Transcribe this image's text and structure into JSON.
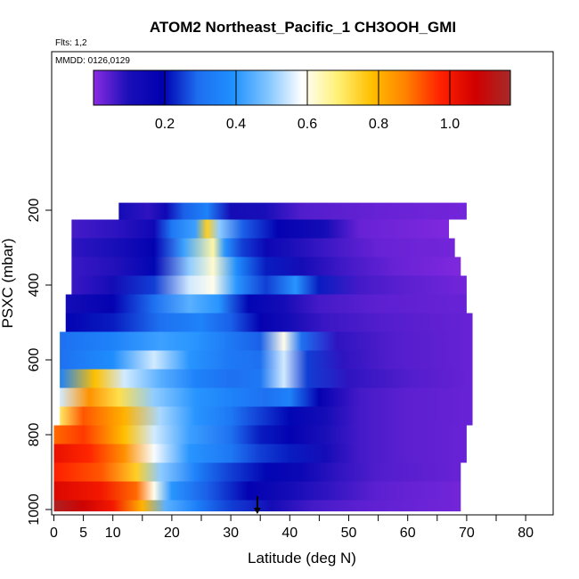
{
  "chart_data": {
    "type": "heatmap",
    "title": "ATOM2 Northeast_Pacific_1 CH3OOH_GMI",
    "flights_label": "Flts: 1,2",
    "dates_label": "MMDD: 0126,0129",
    "xlabel": "Latitude (deg N)",
    "ylabel": "PSXC (mbar)",
    "xlim": [
      0,
      85
    ],
    "ylim": [
      1010,
      0
    ],
    "x_ticks": [
      0,
      5,
      10,
      20,
      30,
      40,
      50,
      60,
      70,
      80
    ],
    "x_minor_ticks": [
      15,
      25,
      35,
      45,
      55,
      65,
      75,
      85
    ],
    "y_ticks": [
      200,
      400,
      600,
      800,
      1000
    ],
    "y_ticks_labeled": true,
    "grid": false,
    "colorbar": {
      "range": [
        0.0,
        1.17
      ],
      "ticks": [
        0.2,
        0.4,
        0.6,
        0.8,
        1.0
      ],
      "tick_labels": [
        "0.2",
        "0.4",
        "0.6",
        "0.8",
        "1.0"
      ],
      "colors": [
        "#8a2be2",
        "#1a0fb8",
        "#0000b0",
        "#1e6ef0",
        "#1e90ff",
        "#7fc4ff",
        "#ffffff",
        "#fff27a",
        "#ffc000",
        "#ff8000",
        "#ff2000",
        "#d00000",
        "#a52a2a"
      ]
    },
    "marker_latitude": 34.5,
    "rows": [
      {
        "p": 200,
        "x0": 11,
        "x1": 70,
        "stops": [
          [
            11,
            0.12
          ],
          [
            16,
            0.08
          ],
          [
            19,
            0.14
          ],
          [
            22,
            0.28
          ],
          [
            26,
            0.35
          ],
          [
            30,
            0.12
          ],
          [
            36,
            0.1
          ],
          [
            42,
            0.05
          ],
          [
            56,
            0.03
          ],
          [
            70,
            0.02
          ]
        ]
      },
      {
        "p": 250,
        "x0": 3,
        "x1": 67,
        "stops": [
          [
            3,
            0.06
          ],
          [
            10,
            0.08
          ],
          [
            17,
            0.14
          ],
          [
            20,
            0.32
          ],
          [
            24,
            0.42
          ],
          [
            26,
            0.75
          ],
          [
            28,
            0.5
          ],
          [
            32,
            0.28
          ],
          [
            38,
            0.18
          ],
          [
            46,
            0.12
          ],
          [
            52,
            0.03
          ],
          [
            67,
            0.01
          ]
        ]
      },
      {
        "p": 300,
        "x0": 3,
        "x1": 68,
        "stops": [
          [
            3,
            0.08
          ],
          [
            10,
            0.1
          ],
          [
            17,
            0.18
          ],
          [
            22,
            0.42
          ],
          [
            27,
            0.65
          ],
          [
            29,
            0.4
          ],
          [
            32,
            0.25
          ],
          [
            36,
            0.15
          ],
          [
            40,
            0.1
          ],
          [
            48,
            0.06
          ],
          [
            55,
            0.03
          ],
          [
            68,
            0.02
          ]
        ]
      },
      {
        "p": 350,
        "x0": 3,
        "x1": 69,
        "stops": [
          [
            3,
            0.07
          ],
          [
            10,
            0.09
          ],
          [
            17,
            0.2
          ],
          [
            23,
            0.5
          ],
          [
            27,
            0.62
          ],
          [
            31,
            0.38
          ],
          [
            36,
            0.22
          ],
          [
            42,
            0.12
          ],
          [
            50,
            0.06
          ],
          [
            58,
            0.03
          ],
          [
            69,
            0.01
          ]
        ]
      },
      {
        "p": 400,
        "x0": 3,
        "x1": 70,
        "stops": [
          [
            3,
            0.07
          ],
          [
            10,
            0.12
          ],
          [
            17,
            0.25
          ],
          [
            23,
            0.55
          ],
          [
            27,
            0.6
          ],
          [
            31,
            0.4
          ],
          [
            36,
            0.25
          ],
          [
            41,
            0.4
          ],
          [
            45,
            0.22
          ],
          [
            52,
            0.06
          ],
          [
            60,
            0.04
          ],
          [
            70,
            0.02
          ]
        ]
      },
      {
        "p": 450,
        "x0": 2,
        "x1": 70,
        "stops": [
          [
            2,
            0.12
          ],
          [
            10,
            0.18
          ],
          [
            17,
            0.3
          ],
          [
            23,
            0.45
          ],
          [
            28,
            0.4
          ],
          [
            33,
            0.2
          ],
          [
            39,
            0.12
          ],
          [
            45,
            0.06
          ],
          [
            55,
            0.04
          ],
          [
            70,
            0.03
          ]
        ]
      },
      {
        "p": 500,
        "x0": 2,
        "x1": 71,
        "stops": [
          [
            2,
            0.18
          ],
          [
            10,
            0.22
          ],
          [
            18,
            0.3
          ],
          [
            25,
            0.35
          ],
          [
            30,
            0.28
          ],
          [
            35,
            0.18
          ],
          [
            40,
            0.12
          ],
          [
            46,
            0.07
          ],
          [
            55,
            0.05
          ],
          [
            71,
            0.03
          ]
        ]
      },
      {
        "p": 550,
        "x0": 1,
        "x1": 71,
        "stops": [
          [
            1,
            0.3
          ],
          [
            10,
            0.35
          ],
          [
            18,
            0.42
          ],
          [
            24,
            0.4
          ],
          [
            30,
            0.32
          ],
          [
            35,
            0.28
          ],
          [
            39,
            0.6
          ],
          [
            42,
            0.3
          ],
          [
            48,
            0.08
          ],
          [
            57,
            0.05
          ],
          [
            71,
            0.03
          ]
        ]
      },
      {
        "p": 600,
        "x0": 1,
        "x1": 71,
        "stops": [
          [
            1,
            0.3
          ],
          [
            10,
            0.38
          ],
          [
            17,
            0.55
          ],
          [
            23,
            0.4
          ],
          [
            30,
            0.32
          ],
          [
            35,
            0.3
          ],
          [
            39,
            0.55
          ],
          [
            43,
            0.25
          ],
          [
            49,
            0.08
          ],
          [
            57,
            0.05
          ],
          [
            71,
            0.03
          ]
        ]
      },
      {
        "p": 650,
        "x0": 1,
        "x1": 71,
        "stops": [
          [
            1,
            0.35
          ],
          [
            7,
            0.78
          ],
          [
            12,
            0.55
          ],
          [
            18,
            0.45
          ],
          [
            24,
            0.35
          ],
          [
            30,
            0.3
          ],
          [
            35,
            0.32
          ],
          [
            39,
            0.55
          ],
          [
            43,
            0.25
          ],
          [
            50,
            0.08
          ],
          [
            60,
            0.05
          ],
          [
            71,
            0.03
          ]
        ]
      },
      {
        "p": 700,
        "x0": 1,
        "x1": 71,
        "stops": [
          [
            1,
            0.55
          ],
          [
            6,
            0.85
          ],
          [
            11,
            0.72
          ],
          [
            17,
            0.5
          ],
          [
            24,
            0.4
          ],
          [
            30,
            0.35
          ],
          [
            36,
            0.3
          ],
          [
            40,
            0.35
          ],
          [
            45,
            0.18
          ],
          [
            52,
            0.06
          ],
          [
            60,
            0.04
          ],
          [
            71,
            0.03
          ]
        ]
      },
      {
        "p": 750,
        "x0": 1,
        "x1": 71,
        "stops": [
          [
            1,
            0.7
          ],
          [
            5,
            0.92
          ],
          [
            12,
            0.8
          ],
          [
            18,
            0.52
          ],
          [
            24,
            0.4
          ],
          [
            30,
            0.32
          ],
          [
            35,
            0.25
          ],
          [
            40,
            0.2
          ],
          [
            46,
            0.12
          ],
          [
            52,
            0.06
          ],
          [
            60,
            0.04
          ],
          [
            71,
            0.03
          ]
        ]
      },
      {
        "p": 800,
        "x0": 0,
        "x1": 70,
        "stops": [
          [
            0,
            0.9
          ],
          [
            5,
            0.95
          ],
          [
            12,
            0.78
          ],
          [
            17,
            0.55
          ],
          [
            23,
            0.42
          ],
          [
            30,
            0.3
          ],
          [
            35,
            0.22
          ],
          [
            40,
            0.18
          ],
          [
            46,
            0.1
          ],
          [
            52,
            0.06
          ],
          [
            60,
            0.04
          ],
          [
            70,
            0.03
          ]
        ]
      },
      {
        "p": 850,
        "x0": 0,
        "x1": 70,
        "stops": [
          [
            0,
            1.02
          ],
          [
            6,
            0.97
          ],
          [
            12,
            0.85
          ],
          [
            17,
            0.58
          ],
          [
            23,
            0.4
          ],
          [
            30,
            0.32
          ],
          [
            35,
            0.25
          ],
          [
            40,
            0.22
          ],
          [
            46,
            0.12
          ],
          [
            52,
            0.06
          ],
          [
            60,
            0.04
          ],
          [
            70,
            0.03
          ]
        ]
      },
      {
        "p": 900,
        "x0": 0,
        "x1": 69,
        "stops": [
          [
            0,
            0.98
          ],
          [
            8,
            0.92
          ],
          [
            14,
            0.75
          ],
          [
            18,
            0.5
          ],
          [
            24,
            0.35
          ],
          [
            30,
            0.25
          ],
          [
            36,
            0.2
          ],
          [
            42,
            0.15
          ],
          [
            48,
            0.08
          ],
          [
            55,
            0.05
          ],
          [
            69,
            0.03
          ]
        ]
      },
      {
        "p": 950,
        "x0": 0,
        "x1": 69,
        "stops": [
          [
            0,
            1.05
          ],
          [
            8,
            1.0
          ],
          [
            14,
            0.9
          ],
          [
            17,
            0.6
          ],
          [
            20,
            0.4
          ],
          [
            26,
            0.28
          ],
          [
            33,
            0.18
          ],
          [
            40,
            0.12
          ],
          [
            46,
            0.08
          ],
          [
            55,
            0.04
          ],
          [
            69,
            0.02
          ]
        ]
      },
      {
        "p": 1000,
        "x0": 0,
        "x1": 69,
        "stops": [
          [
            0,
            1.15
          ],
          [
            5,
            1.08
          ],
          [
            10,
            1.0
          ],
          [
            15,
            0.8
          ],
          [
            19,
            0.45
          ],
          [
            24,
            0.35
          ],
          [
            30,
            0.25
          ],
          [
            37,
            0.12
          ],
          [
            44,
            0.06
          ],
          [
            52,
            0.04
          ],
          [
            69,
            0.02
          ]
        ]
      }
    ]
  }
}
